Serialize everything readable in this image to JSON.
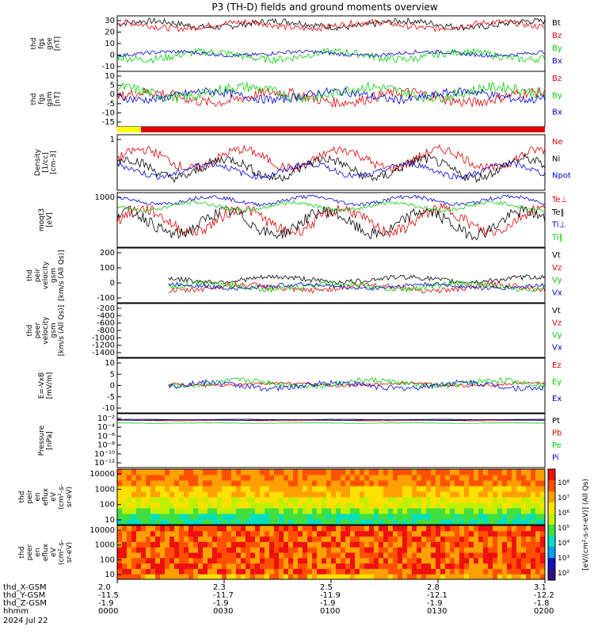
{
  "title": "P3 (TH-D) fields and ground moments overview",
  "colors": {
    "black": "#000000",
    "red": "#e00000",
    "green": "#00d000",
    "blue": "#0000d0",
    "yellow": "#ffff00"
  },
  "status_bar": {
    "segments": [
      {
        "color": "#ffff00",
        "x_end": "0008"
      },
      {
        "color": "#e00000",
        "x_end": "0200"
      }
    ]
  },
  "x_axis": {
    "ticks": [
      "0000",
      "0030",
      "0100",
      "0130",
      "0200"
    ],
    "rows": [
      {
        "label": "thd_X-GSM",
        "values": [
          "2.0",
          "2.3",
          "2.5",
          "2.8",
          "3.1"
        ]
      },
      {
        "label": "thd_Y-GSM",
        "values": [
          "-11.5",
          "-11.7",
          "-11.9",
          "-12.1",
          "-12.2"
        ]
      },
      {
        "label": "thd_Z-GSM",
        "values": [
          "-1.9",
          "-1.9",
          "-1.9",
          "-1.9",
          "-1.8"
        ]
      },
      {
        "label": "hhmm",
        "values": [
          "0000",
          "0030",
          "0100",
          "0130",
          "0200"
        ]
      }
    ],
    "date": "2024 Jul 22"
  },
  "colorbar": {
    "ticks": [
      "10⁸",
      "10⁷",
      "10⁶",
      "10⁵",
      "10⁴",
      "10³",
      "10²"
    ],
    "label": "[eV/(cm²-s-sr-eV)] (All Qs)"
  },
  "chart_data": [
    {
      "type": "line",
      "ylabel": [
        "thd",
        "fgs",
        "gse",
        "[nT]"
      ],
      "ylim": [
        -15,
        38
      ],
      "yticks": [
        "30",
        "20",
        "10",
        "0",
        "-10"
      ],
      "series": [
        {
          "name": "Bt",
          "color": "#000000",
          "level": 30,
          "amp": 5
        },
        {
          "name": "Bz",
          "color": "#e00000",
          "level": 29,
          "amp": 5
        },
        {
          "name": "By",
          "color": "#00d000",
          "level": 0,
          "amp": 6
        },
        {
          "name": "Bx",
          "color": "#0000d0",
          "level": 2,
          "amp": 3
        }
      ]
    },
    {
      "type": "line",
      "ylabel": [
        "thd",
        "fgs",
        "gsm",
        "[nT]"
      ],
      "ylim": [
        -20,
        12
      ],
      "yticks": [
        "10",
        "5",
        "0",
        "-5",
        "-10",
        "-15"
      ],
      "series": [
        {
          "name": "Bz",
          "color": "#e00000",
          "level": -3,
          "amp": 5
        },
        {
          "name": "By",
          "color": "#00d000",
          "level": 0,
          "amp": 5
        },
        {
          "name": "Bx",
          "color": "#0000d0",
          "level": -2,
          "amp": 4
        }
      ]
    },
    {
      "type": "line",
      "ylabel": [
        "Density",
        "[1/cc]",
        "[cm-3]"
      ],
      "ylim": [
        0.05,
        3
      ],
      "log": true,
      "yticks": [
        "1"
      ],
      "series": [
        {
          "name": "Ne",
          "color": "#e00000",
          "level": 0.5,
          "amp": 0.3
        },
        {
          "name": "Ni",
          "color": "#000000",
          "level": 0.25,
          "amp": 0.3
        },
        {
          "name": "Npot",
          "color": "#0000d0",
          "level": 0.22,
          "amp": 0.2
        }
      ]
    },
    {
      "type": "line",
      "ylabel": [
        "moqt3",
        "[eV]"
      ],
      "ylim": [
        300,
        8000
      ],
      "log": true,
      "yticks": [
        "1000"
      ],
      "series": [
        {
          "name": "Te⊥",
          "color": "#e00000",
          "level": 1500,
          "amp": 0.3
        },
        {
          "name": "Te‖",
          "color": "#000000",
          "level": 1300,
          "amp": 0.3
        },
        {
          "name": "Ti⊥",
          "color": "#0000d0",
          "level": 5000,
          "amp": 0.1
        },
        {
          "name": "Ti‖",
          "color": "#00d000",
          "level": 3500,
          "amp": 0.1
        }
      ]
    },
    {
      "type": "line",
      "ylabel": [
        "thd",
        "peir",
        "velocity",
        "gsm",
        "[km/s (All Qs)]"
      ],
      "ylim": [
        -110,
        290
      ],
      "yticks": [
        "200",
        "100",
        "0",
        "-100"
      ],
      "series": [
        {
          "name": "Vt",
          "color": "#000000",
          "level": 60,
          "amp": 30
        },
        {
          "name": "Vz",
          "color": "#e00000",
          "level": 0,
          "amp": 35
        },
        {
          "name": "Vy",
          "color": "#00d000",
          "level": 10,
          "amp": 35
        },
        {
          "name": "Vx",
          "color": "#0000d0",
          "level": 10,
          "amp": 25
        }
      ]
    },
    {
      "type": "line",
      "ylabel": [
        "thd",
        "peer",
        "velocity",
        "gsm",
        "[km/s (All Qs)]"
      ],
      "ylim": [
        -1450,
        -180
      ],
      "yticks": [
        "-200",
        "-400",
        "-600",
        "-800",
        "-1000",
        "-1200",
        "-1400"
      ],
      "series": [
        {
          "name": "Vt",
          "color": "#000000"
        },
        {
          "name": "Vz",
          "color": "#e00000"
        },
        {
          "name": "Vy",
          "color": "#00d000"
        },
        {
          "name": "Vx",
          "color": "#0000d0"
        }
      ]
    },
    {
      "type": "line",
      "ylabel": [
        "E=-VxB",
        "[mV/m]"
      ],
      "ylim": [
        -12,
        11
      ],
      "yticks": [
        "10",
        "5",
        "0",
        "-5",
        "-10"
      ],
      "series": [
        {
          "name": "Ez",
          "color": "#e00000",
          "level": 0,
          "amp": 1
        },
        {
          "name": "Ey",
          "color": "#00d000",
          "level": 0.5,
          "amp": 2
        },
        {
          "name": "Ex",
          "color": "#0000d0",
          "level": -0.5,
          "amp": 2
        }
      ]
    },
    {
      "type": "line",
      "ylabel": [
        "Pressure",
        "[nPa]"
      ],
      "log": true,
      "ylim": [
        1e-12,
        1
      ],
      "yticks": [
        "10⁻²",
        "10⁻⁴",
        "10⁻⁶",
        "10⁻⁸",
        "10⁻¹⁰",
        "10⁻¹²"
      ],
      "series": [
        {
          "name": "Pt",
          "color": "#000000",
          "level": 0.05
        },
        {
          "name": "Pb",
          "color": "#e00000",
          "level": 0.03
        },
        {
          "name": "Pe",
          "color": "#00d000",
          "level": 0.008
        },
        {
          "name": "Pi",
          "color": "#0000d0",
          "level": 0.04
        }
      ]
    },
    {
      "type": "heatmap",
      "ylabel": [
        "thd",
        "peir",
        "en",
        "eflux",
        "eV",
        "(cm²-s-",
        "sr-eV)"
      ],
      "ylim": [
        5,
        20000
      ],
      "log": true,
      "yticks": [
        "10000",
        "1000",
        "100",
        "10"
      ]
    },
    {
      "type": "heatmap",
      "ylabel": [
        "thd",
        "peer",
        "en",
        "eflux",
        "eV",
        "(cm²-s-",
        "sr-eV)"
      ],
      "ylim": [
        5,
        20000
      ],
      "log": true,
      "yticks": [
        "10000",
        "1000",
        "100",
        "10"
      ]
    }
  ]
}
